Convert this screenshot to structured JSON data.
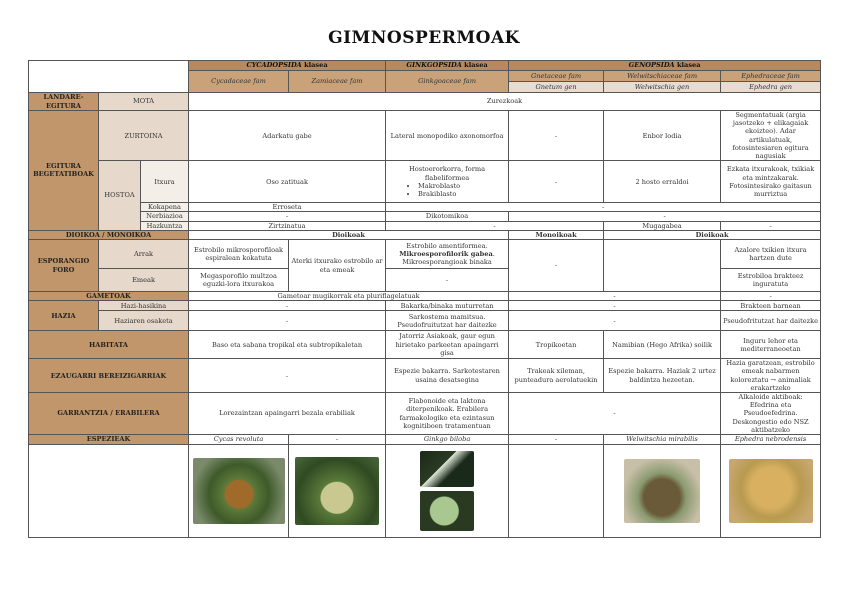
{
  "title": "GIMNOSPERMOAK",
  "header": {
    "cycad_class": "CYCADOPSIDA",
    "ginkgo_class": "GINKGOPSIDA",
    "genop_class": "GENOPSIDA",
    "klasea": " klasea",
    "cycadaceae": "Cycadaceae fam",
    "zamiaceae": "Zamiaceae fam",
    "ginkgoaceae": "Ginkgoaceae fam",
    "gnetaceae": "Gnetaceae fam",
    "welwitschiaceae": "Welwitschiaceae fam",
    "ephedraceae": "Ephedraceae fam",
    "gnetum": "Gnetum gen",
    "welwitschia": "Welwitschia gen",
    "ephedra": "Ephedra gen"
  },
  "rows": {
    "landare": "LANDARE-EGITURA",
    "mota": "MOTA",
    "zurezkoak": "Zurezkoak",
    "egitura": "EGITURA BEGETATIBOAK",
    "zurtoina": "ZURTOINA",
    "adarkatu": "Adarkatu gabe",
    "lateral": "Lateral monopodiko axonomorfoa",
    "dash": "-",
    "enbor": "Enbor lodia",
    "segmentatuak": "Segmentatuak (argia jasotzeko + elikagaiak ekoizteo). Adar artikulatuak, fotosintesiaren egitura nagusiak",
    "hostoa": "HOSTOA",
    "itxura": "Itxura",
    "oso": "Oso zatituak",
    "hostoerorkorra": "Hostoerorkorra, forma flabeliformea",
    "makro": "Makroblasto",
    "brakib": "Brakiblasto",
    "bi_hosto": "2 hosto erraldoi",
    "ezkata": "Ezkata itxurakoak, txikiak eta mintzakarak. Fotosintesirako gaitasun murriztua",
    "kokapena": "Kokapena",
    "erroseta": "Erroseta",
    "nerbiazioa": "Nerbiazioa",
    "dikotomikoa": "Dikotomikoa",
    "hazkuntza": "Hazkuntza",
    "zirtzinatua": "Zirtzinatua",
    "mugagabea": "Mugagabea",
    "dioikoa": "DIOIKOA / MONOIKOA",
    "dioikoak": "Dioikoak",
    "monoikoak": "Monoikoak",
    "esporangio": "ESPORANGIO FORO",
    "arrak": "Arrak",
    "cyc_arrak": "Estrobilo mikrosporofiloak espiralean kokatuta",
    "aterki": "Aterki itxurako estrobilo ar eta emeak",
    "gink_arrak_1": "Estrobilo amentiformea.",
    "gink_arrak_2": "Mikroesporofilorik gabea",
    "gink_arrak_3": ". Mikroesporangioak binaka",
    "azalore": "Azalore txikien itxura hartzen dute",
    "emeak": "Emeak",
    "megas": "Megasporofilo multzoa eguzki-lora itxurakoa",
    "estrobiloa": "Estrobiloa brakteez inguratuta",
    "gametoak": "GAMETOAK",
    "gametoar": "Gametoar mugikorrak eta pluriflagelatuak",
    "hazia": "HAZIA",
    "hazi_hasikina": "Hazi-hasikina",
    "bakarka": "Bakarka/binaka muturretan",
    "brakteen": "Brakteen barnean",
    "osaketa": "Haziaren osaketa",
    "sarkostema": "Sarkostema mamitsua. Pseudofruitutzat har daitezke",
    "pseudo": "Pseudofritutzat har daitezke",
    "habitata": "HABITATA",
    "baso": "Baso eta sabana tropikal eta subtropikaletan",
    "jatorriz": "Jatorriz Asiakoak, gaur egun hirietako parkeetan apaingarri gisa",
    "tropikoetan": "Tropikoetan",
    "namibian": "Namibian (Hego Afrika) soilik",
    "inguru": "Inguru lehor eta mediterraneoetan",
    "ezaugarri": "EZAUGARRI BEREIZIGARRIAK",
    "gink_ez": "Espezie bakarra. Sarkotestaren usaina desatsegina",
    "trakeak": "Trakeak xileman, punteadura aerolatuekin",
    "welw_ez": "Espezie bakarra. Haziak 2 urtez baldintza hezeetan.",
    "eph_ez": "Hazia garatzean, estrobilo emeak nabarmen koloreztatu → animaliak erakartzeko",
    "garrantzia": "GARRANTZIA / ERABILERA",
    "lorezaintzan": "Lorezaintzan apaingarri bezala erabiliak",
    "flabonoide": "Flabonoide eta laktona diterpenikoak. Erabilera farmakologiko eta ezintasun kognitiboen tratamentuan",
    "alkaloide": "Alkaloide aktiboak: Efedrina eta Pseudoefedrina. Deskongestio edo NSZ aktibatzeko",
    "espezieak": "ESPEZIEAK",
    "cycas": "Cycas revoluta",
    "ginkgo": "Ginkgo biloba",
    "welwitschia": "Welwitschia mirabilis",
    "ephedra": "Ephedra nebrodensis"
  },
  "colors": {
    "header_dark": "#b8895c",
    "header_mid": "#c9a27a",
    "header_light": "#e9dccf",
    "label": "#c0966a"
  }
}
